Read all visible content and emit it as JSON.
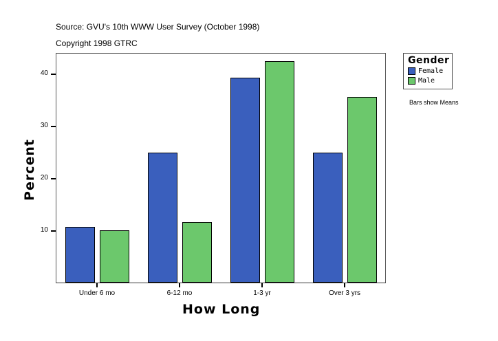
{
  "header": {
    "source": "Source: GVU's 10th WWW User Survey (October 1998)",
    "copyright": "Copyright 1998 GTRC"
  },
  "legend": {
    "title": "Gender",
    "items": [
      {
        "label": "Female",
        "color": "#3a5fbd"
      },
      {
        "label": "Male",
        "color": "#6cc86c"
      }
    ],
    "note": "Bars show Means"
  },
  "axes": {
    "xlabel": "How Long",
    "ylabel": "Percent",
    "yticks": [
      "10",
      "20",
      "30",
      "40"
    ]
  },
  "chart_data": {
    "type": "bar",
    "title": "",
    "subtitle": "Source: GVU's 10th WWW User Survey (October 1998) / Copyright 1998 GTRC",
    "xlabel": "How Long",
    "ylabel": "Percent",
    "categories": [
      "Under 6 mo",
      "6-12 mo",
      "1-3 yr",
      "Over 3 yrs"
    ],
    "series": [
      {
        "name": "Female",
        "color": "#3a5fbd",
        "values": [
          10.7,
          24.9,
          39.2,
          24.9
        ]
      },
      {
        "name": "Male",
        "color": "#6cc86c",
        "values": [
          10.0,
          11.6,
          42.4,
          35.5
        ]
      }
    ],
    "ylim": [
      0,
      44
    ],
    "yticks": [
      10,
      20,
      30,
      40
    ],
    "grid": false,
    "legend_position": "right",
    "annotations": [
      "Bars show Means"
    ]
  }
}
